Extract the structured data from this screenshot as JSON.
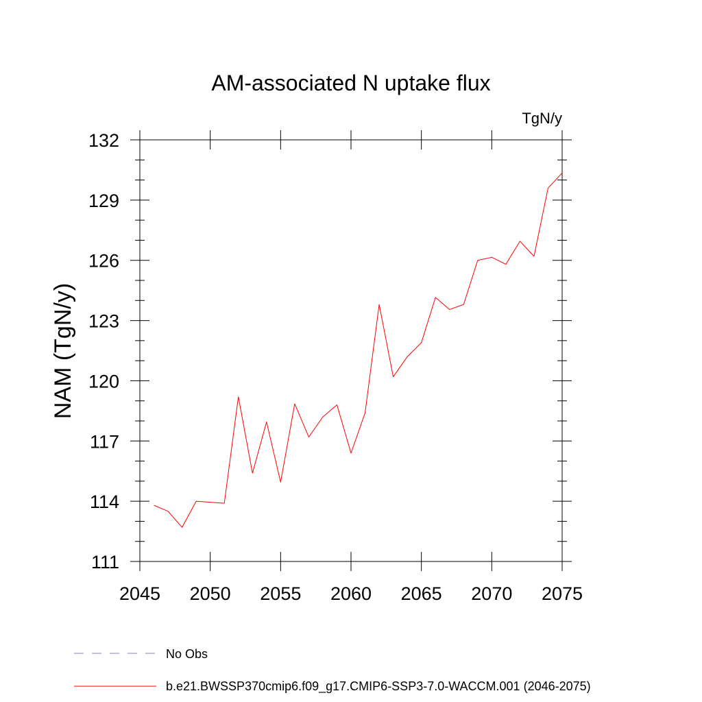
{
  "chart_data": {
    "type": "line",
    "title": "AM-associated N uptake flux",
    "units": "TgN/y",
    "ylabel": "NAM  (TgN/y)",
    "xlabel": "",
    "xlim": [
      2045,
      2075
    ],
    "ylim": [
      111,
      132
    ],
    "x_ticks": [
      2045,
      2050,
      2055,
      2060,
      2065,
      2070,
      2075
    ],
    "y_ticks": [
      111,
      114,
      117,
      120,
      123,
      126,
      129,
      132
    ],
    "x_tick_labels": [
      "2045",
      "2050",
      "2055",
      "2060",
      "2065",
      "2070",
      "2075"
    ],
    "y_tick_labels": [
      "111",
      "114",
      "117",
      "120",
      "123",
      "126",
      "129",
      "132"
    ],
    "series": [
      {
        "name": "b.e21.BWSSP370cmip6.f09_g17.CMIP6-SSP3-7.0-WACCM.001 (2046-2075)",
        "color": "#ff0000",
        "x": [
          2046,
          2047,
          2048,
          2049,
          2050,
          2051,
          2052,
          2053,
          2054,
          2055,
          2056,
          2057,
          2058,
          2059,
          2060,
          2061,
          2062,
          2063,
          2064,
          2065,
          2066,
          2067,
          2068,
          2069,
          2070,
          2071,
          2072,
          2073,
          2074,
          2075
        ],
        "y": [
          113.8,
          113.5,
          112.7,
          114.0,
          113.95,
          113.9,
          119.2,
          115.4,
          117.95,
          114.95,
          118.85,
          117.2,
          118.2,
          118.8,
          116.4,
          118.4,
          123.8,
          120.2,
          121.2,
          121.9,
          124.15,
          123.55,
          123.8,
          126.0,
          126.15,
          125.8,
          126.95,
          126.2,
          129.6,
          130.35
        ]
      }
    ],
    "legend": {
      "placement": "bottom-left",
      "entries": [
        {
          "label": "No Obs",
          "color": "#8080c0",
          "style": "dashed"
        },
        {
          "label": "b.e21.BWSSP370cmip6.f09_g17.CMIP6-SSP3-7.0-WACCM.001 (2046-2075)",
          "color": "#ff0000",
          "style": "solid"
        }
      ]
    },
    "grid": false
  }
}
